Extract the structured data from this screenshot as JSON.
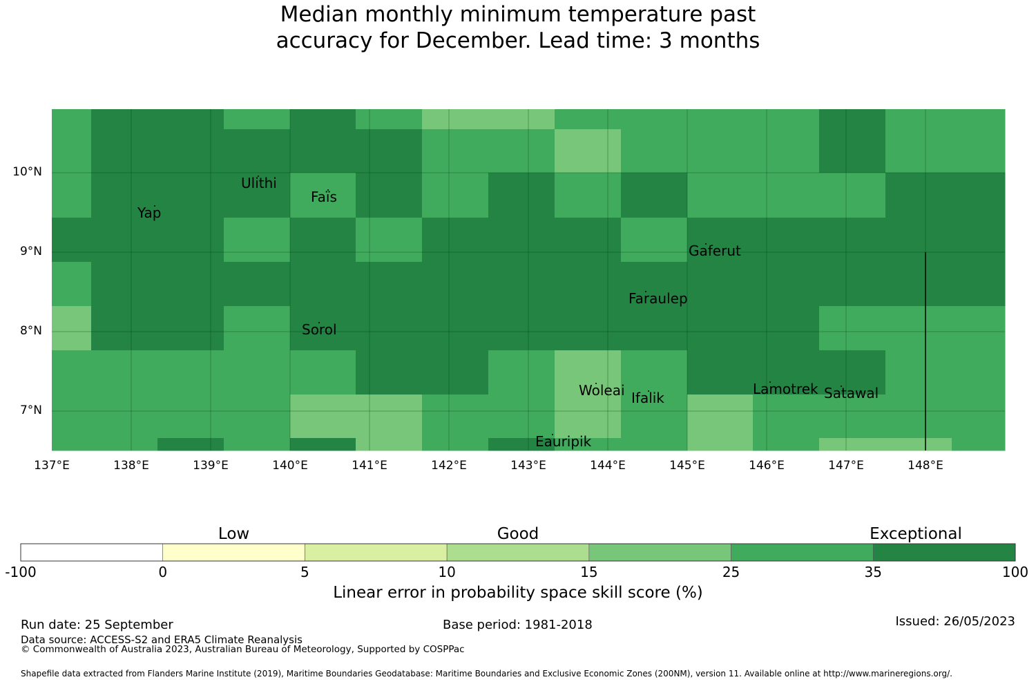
{
  "title": {
    "line1": "Median monthly minimum temperature past",
    "line2": "accuracy for December. Lead time: 3 months"
  },
  "map": {
    "lon_range": [
      137,
      149
    ],
    "lat_range": [
      6.5,
      10.8
    ],
    "lon_ticks": [
      "137°E",
      "138°E",
      "139°E",
      "140°E",
      "141°E",
      "142°E",
      "143°E",
      "144°E",
      "145°E",
      "146°E",
      "147°E",
      "148°E"
    ],
    "lat_ticks": [
      "10°N",
      "9°N",
      "8°N",
      "7°N"
    ],
    "colors": {
      "c35": "#238443",
      "c25": "#41ab5d",
      "c15": "#78c679"
    },
    "grid_col_edges_lon": [
      137,
      137.5,
      138.33,
      139.17,
      140,
      140.83,
      141.67,
      142.5,
      143.33,
      144.17,
      145,
      145.83,
      146.67,
      147.5,
      148.33,
      149
    ],
    "grid_row_edges_lat": [
      10.8,
      10.55,
      10.0,
      9.45,
      8.9,
      8.35,
      7.8,
      7.25,
      6.7,
      6.5
    ],
    "cells": [
      [
        "c25",
        "c35",
        "c35",
        "c25",
        "c35",
        "c25",
        "c15",
        "c15",
        "c25",
        "c25",
        "c25",
        "c25",
        "c35",
        "c25",
        "c25"
      ],
      [
        "c25",
        "c35",
        "c35",
        "c35",
        "c35",
        "c35",
        "c25",
        "c25",
        "c15",
        "c25",
        "c25",
        "c25",
        "c35",
        "c25",
        "c25"
      ],
      [
        "c25",
        "c35",
        "c35",
        "c35",
        "c25",
        "c35",
        "c25",
        "c35",
        "c25",
        "c35",
        "c25",
        "c25",
        "c25",
        "c35",
        "c35"
      ],
      [
        "c35",
        "c35",
        "c35",
        "c25",
        "c35",
        "c25",
        "c35",
        "c35",
        "c35",
        "c25",
        "c35",
        "c35",
        "c35",
        "c35",
        "c35"
      ],
      [
        "c25",
        "c35",
        "c35",
        "c35",
        "c35",
        "c35",
        "c35",
        "c35",
        "c35",
        "c35",
        "c35",
        "c35",
        "c35",
        "c35",
        "c35"
      ],
      [
        "c15",
        "c35",
        "c35",
        "c25",
        "c35",
        "c35",
        "c35",
        "c35",
        "c35",
        "c35",
        "c35",
        "c35",
        "c25",
        "c25",
        "c25"
      ],
      [
        "c25",
        "c25",
        "c25",
        "c25",
        "c25",
        "c35",
        "c35",
        "c25",
        "c15",
        "c25",
        "c35",
        "c35",
        "c35",
        "c25",
        "c25"
      ],
      [
        "c25",
        "c25",
        "c25",
        "c25",
        "c15",
        "c15",
        "c25",
        "c25",
        "c15",
        "c25",
        "c15",
        "c25",
        "c25",
        "c25",
        "c25"
      ],
      [
        "c25",
        "c25",
        "c35",
        "c25",
        "c35",
        "c15",
        "c25",
        "c35",
        "c25",
        "c25",
        "c15",
        "c25",
        "c15",
        "c15",
        "c25"
      ]
    ],
    "islands": [
      {
        "name": "Ulithi",
        "lon": 139.75,
        "lat": 10.0
      },
      {
        "name": "Yap",
        "lon": 138.1,
        "lat": 9.5
      },
      {
        "name": "Faïs",
        "lon": 140.5,
        "lat": 9.75
      },
      {
        "name": "Gaferut",
        "lon": 145.35,
        "lat": 9.2
      },
      {
        "name": "Faraulep",
        "lon": 144.55,
        "lat": 8.6
      },
      {
        "name": "Sorol",
        "lon": 140.4,
        "lat": 8.15
      },
      {
        "name": "Woleai",
        "lon": 143.9,
        "lat": 7.37
      },
      {
        "name": "Ifalik",
        "lon": 144.45,
        "lat": 7.25
      },
      {
        "name": "Lamotrek",
        "lon": 146.3,
        "lat": 7.45
      },
      {
        "name": "Satawal",
        "lon": 147.03,
        "lat": 7.35
      },
      {
        "name": "Eauripik",
        "lon": 143.05,
        "lat": 6.68
      }
    ],
    "boundary_line": {
      "lon": 148.0,
      "lat_top": 9.0,
      "lat_bottom": 6.5
    }
  },
  "colorbar": {
    "categories": [
      {
        "label": "Low",
        "at": 1.5
      },
      {
        "label": "Good",
        "at": 3.5
      },
      {
        "label": "Exceptional",
        "at": 6.3
      }
    ],
    "ticks": [
      "-100",
      "0",
      "5",
      "10",
      "15",
      "25",
      "35",
      "100"
    ],
    "segment_colors": [
      "#ffffff",
      "#ffffcc",
      "#d9f0a3",
      "#addd8e",
      "#78c679",
      "#41ab5d",
      "#238443"
    ],
    "label": "Linear error in probability space skill score (%)"
  },
  "footer": {
    "run_date": "Run date: 25 September",
    "base_period": "Base period: 1981-2018",
    "issued": "Issued: 26/05/2023",
    "data_source": "Data source: ACCESS-S2 and ERA5 Climate Reanalysis",
    "copyright": "© Commonwealth of Australia 2023, Australian Bureau of Meteorology, Supported by COSPPac",
    "shapefile": "Shapefile data extracted from Flanders Marine Institute (2019), Maritime Boundaries Geodatabase: Maritime Boundaries and Exclusive Economic Zones (200NM), version 11. Available online at http://www.marineregions.org/."
  }
}
